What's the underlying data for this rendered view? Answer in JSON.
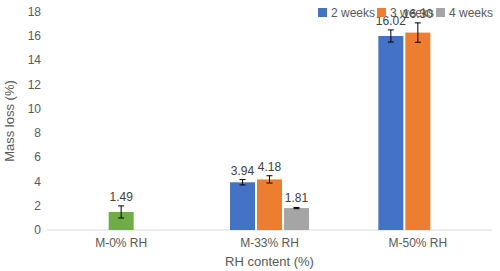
{
  "chart_data": {
    "type": "bar",
    "x_label": "RH content (%)",
    "y_label": "Mass loss (%)",
    "categories": [
      "M-0% RH",
      "M-33% RH",
      "M-50% RH"
    ],
    "series": [
      {
        "name": "2 weeks",
        "color": "#4472c4",
        "values": [
          null,
          3.94,
          16.02
        ],
        "value_labels": [
          null,
          "3.94",
          "16.02"
        ],
        "errors": [
          null,
          0.22,
          0.5
        ]
      },
      {
        "name": "3 weeks",
        "color": "#ed7d31",
        "colors": [
          "#70ad47",
          "#ed7d31",
          "#ed7d31"
        ],
        "values": [
          1.49,
          4.18,
          16.3
        ],
        "value_labels": [
          "1.49",
          "4.18",
          "16.30"
        ],
        "errors": [
          0.5,
          0.3,
          0.8
        ]
      },
      {
        "name": "4 weeks",
        "color": "#a5a5a5",
        "values": [
          null,
          1.81,
          null
        ],
        "value_labels": [
          null,
          "1.81",
          null
        ],
        "errors": [
          null,
          0.05,
          null
        ]
      }
    ],
    "ylim": [
      0,
      18
    ],
    "yticks": [
      0,
      2,
      4,
      6,
      8,
      10,
      12,
      14,
      16,
      18
    ],
    "grid": false,
    "legend": "top",
    "data_labels": true
  }
}
